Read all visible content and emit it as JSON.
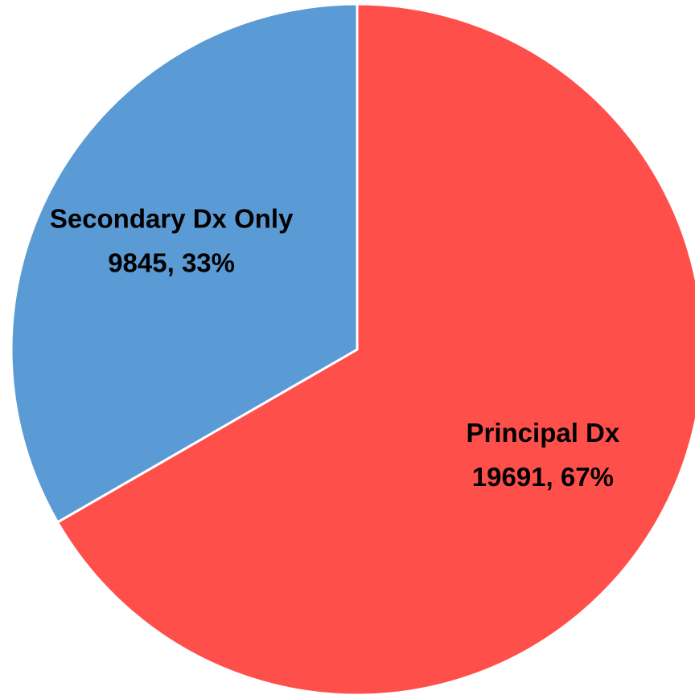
{
  "chart_data": {
    "type": "pie",
    "categories": [
      "Principal Dx",
      "Secondary Dx Only"
    ],
    "values": [
      19691,
      9845
    ],
    "value_labels": [
      "19691, 67%",
      "9845, 33%"
    ],
    "colors": [
      "#ff4f4b",
      "#5b9bd5"
    ]
  }
}
